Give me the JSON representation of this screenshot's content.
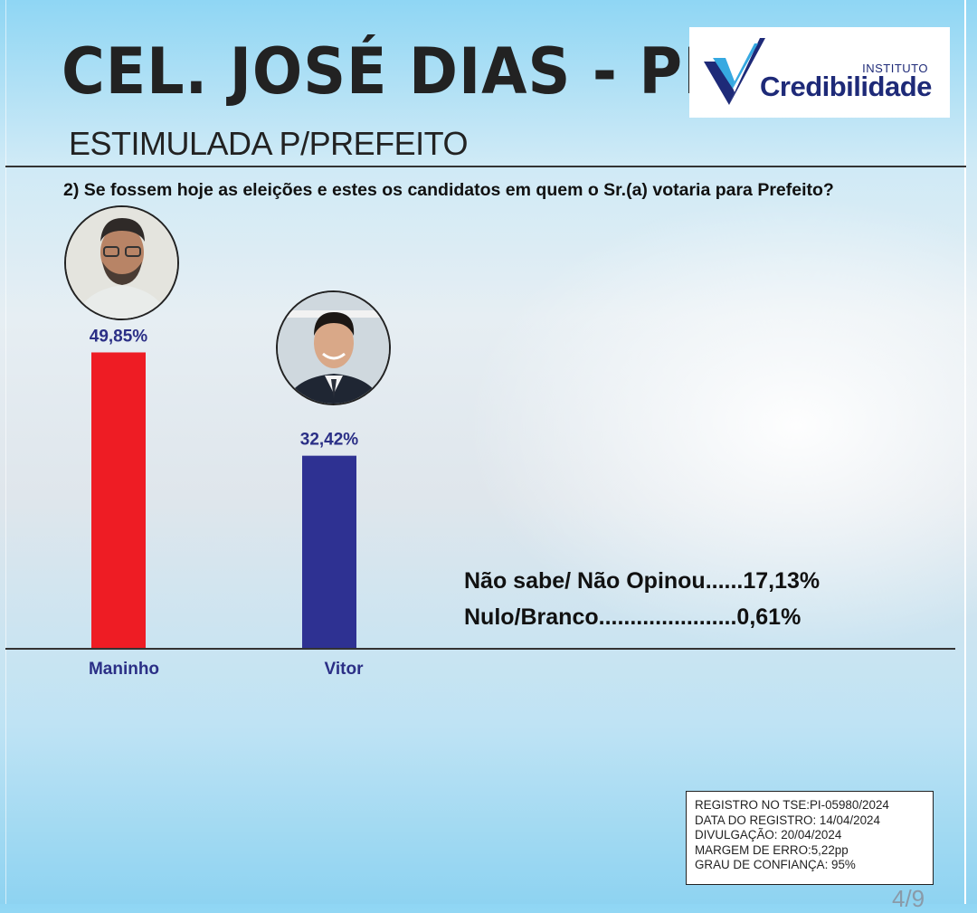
{
  "header": {
    "city_title": "CEL. JOSÉ DIAS - PI",
    "subtitle": "ESTIMULADA P/PREFEITO",
    "question": "2) Se fossem hoje as eleições e estes os candidatos em quem o Sr.(a) votaria para Prefeito?"
  },
  "logo": {
    "instituto": "INSTITUTO",
    "name": "Credibilidade",
    "icon": "v-check-logo"
  },
  "chart_data": {
    "type": "bar",
    "categories": [
      "Maninho",
      "Vitor"
    ],
    "values": [
      49.85,
      32.42
    ],
    "value_labels": [
      "49,85%",
      "32,42%"
    ],
    "colors": [
      "#ee1c24",
      "#2e3192"
    ],
    "ylim": [
      0,
      100
    ],
    "grid": false,
    "candidate_photos": [
      "candidate-photo-maninho",
      "candidate-photo-vitor"
    ]
  },
  "others": [
    {
      "text": "Não sabe/ Não Opinou......17,13%",
      "value": 17.13
    },
    {
      "text": "Nulo/Branco......................0,61%",
      "value": 0.61
    }
  ],
  "registration": {
    "lines": [
      "REGISTRO NO TSE:PI-05980/2024",
      "DATA DO REGISTRO: 14/04/2024",
      "DIVULGAÇÃO: 20/04/2024",
      "MARGEM DE ERRO:5,22pp",
      "GRAU DE CONFIANÇA: 95%"
    ]
  },
  "page_number": "4/9",
  "colors": {
    "bar_maninho": "#ee1c24",
    "bar_vitor": "#2e3192",
    "label_blue": "#2b2f86",
    "logo_navy": "#1e2a78",
    "logo_light_blue": "#36a9e1"
  }
}
